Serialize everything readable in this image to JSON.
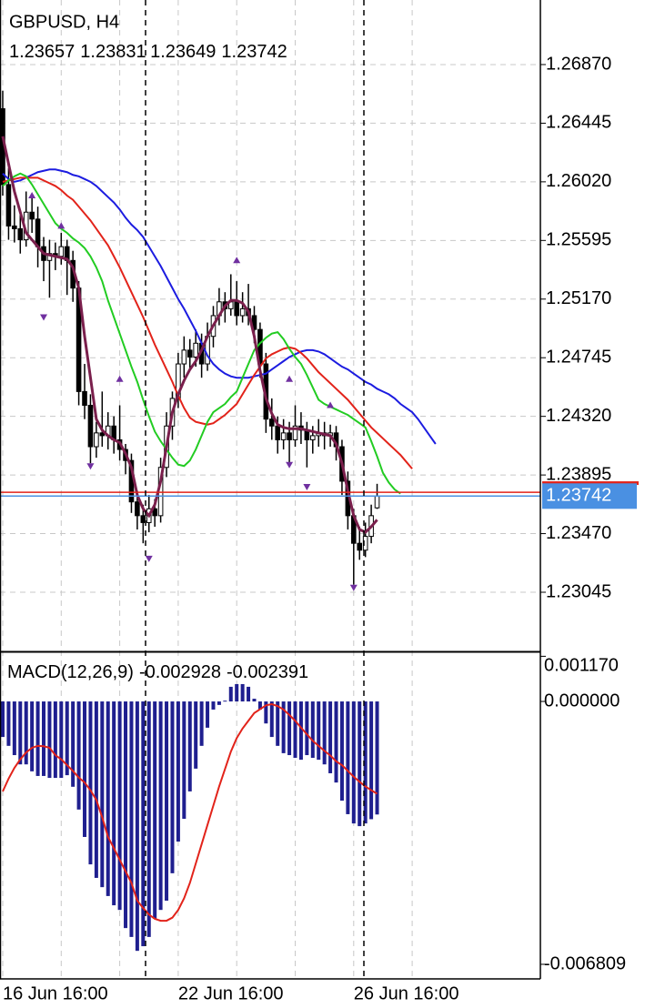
{
  "chart_data": [
    {
      "type": "candlestick",
      "title": "GBPUSD, H4",
      "categories": [
        "16 Jun 16:00",
        null,
        null,
        null,
        null,
        null,
        null,
        null,
        null,
        null,
        null,
        null,
        null,
        null,
        null,
        null,
        null,
        null,
        null,
        null,
        null,
        null,
        null,
        null,
        null,
        null,
        null,
        null,
        null,
        null,
        "22 Jun 16:00",
        null,
        null,
        null,
        null,
        null,
        null,
        null,
        null,
        null,
        null,
        null,
        null,
        null,
        null,
        null,
        null,
        null,
        null,
        null,
        null,
        null,
        null,
        null,
        null,
        null,
        null,
        null,
        null,
        null,
        "26 Jun 16:00",
        null,
        null,
        null,
        null,
        null,
        null,
        null,
        null,
        null,
        null,
        null,
        null,
        null,
        null
      ],
      "open": [
        1.2655,
        1.26,
        1.257,
        1.2568,
        1.256,
        1.258,
        1.2575,
        1.2555,
        1.2545,
        1.255,
        1.2548,
        1.2555,
        1.2545,
        1.2525,
        1.245,
        1.244,
        1.241,
        1.242,
        1.2418,
        1.2425,
        1.2415,
        1.2408,
        1.24,
        1.237,
        1.236,
        1.2355,
        1.2365,
        1.236,
        1.2395,
        1.2425,
        1.2445,
        1.247,
        1.248,
        1.2475,
        1.2485,
        1.247,
        1.249,
        1.2505,
        1.2515,
        1.251,
        1.2515,
        1.2505,
        1.251,
        1.2505,
        1.2495,
        1.247,
        1.243,
        1.2425,
        1.2415,
        1.242,
        1.2415,
        1.2425,
        1.2422,
        1.2415,
        1.2418,
        1.242,
        1.2418,
        1.242,
        1.241,
        1.2385,
        1.236,
        1.234,
        1.2335,
        1.2345,
        1.23657,
        null,
        null,
        null,
        null,
        null,
        null,
        null,
        null,
        null,
        null
      ],
      "high": [
        1.2668,
        1.2612,
        1.2585,
        1.258,
        1.2595,
        1.2592,
        1.2584,
        1.2562,
        1.256,
        1.2558,
        1.2565,
        1.256,
        1.2552,
        1.253,
        1.247,
        1.2448,
        1.2428,
        1.245,
        1.2435,
        1.2432,
        1.244,
        1.2412,
        1.2405,
        1.2378,
        1.2368,
        1.2375,
        1.2372,
        1.2402,
        1.2435,
        1.245,
        1.2478,
        1.249,
        1.2488,
        1.2495,
        1.2492,
        1.25,
        1.2512,
        1.2525,
        1.2522,
        1.2535,
        1.253,
        1.2522,
        1.2528,
        1.2512,
        1.25,
        1.2478,
        1.2445,
        1.2432,
        1.243,
        1.2428,
        1.244,
        1.2435,
        1.2428,
        1.2425,
        1.243,
        1.2428,
        1.2426,
        1.2425,
        1.2415,
        1.2392,
        1.2365,
        1.2352,
        1.2355,
        1.2368,
        1.23831,
        null,
        null,
        null,
        null,
        null,
        null,
        null,
        null,
        null,
        null
      ],
      "low": [
        1.2592,
        1.256,
        1.2558,
        1.255,
        1.2555,
        1.2565,
        1.254,
        1.253,
        1.2518,
        1.2538,
        1.2542,
        1.252,
        1.2515,
        1.244,
        1.243,
        1.2398,
        1.2402,
        1.241,
        1.2408,
        1.2405,
        1.24,
        1.239,
        1.2362,
        1.235,
        1.234,
        1.2348,
        1.2352,
        1.2355,
        1.2388,
        1.2415,
        1.2438,
        1.246,
        1.2465,
        1.2468,
        1.246,
        1.2465,
        1.2482,
        1.2498,
        1.25,
        1.2505,
        1.2498,
        1.25,
        1.2498,
        1.2485,
        1.246,
        1.242,
        1.2415,
        1.2405,
        1.2408,
        1.2398,
        1.241,
        1.2412,
        1.2395,
        1.2405,
        1.241,
        1.2408,
        1.241,
        1.24,
        1.2375,
        1.235,
        1.231,
        1.2328,
        1.233,
        1.234,
        1.23649,
        null,
        null,
        null,
        null,
        null,
        null,
        null,
        null,
        null,
        null
      ],
      "close": [
        1.26,
        1.257,
        1.2568,
        1.256,
        1.258,
        1.2575,
        1.2555,
        1.2545,
        1.255,
        1.2548,
        1.2555,
        1.2545,
        1.2525,
        1.245,
        1.244,
        1.241,
        1.242,
        1.2418,
        1.2425,
        1.2415,
        1.2408,
        1.24,
        1.237,
        1.236,
        1.2355,
        1.2365,
        1.236,
        1.2395,
        1.2425,
        1.2445,
        1.247,
        1.248,
        1.2475,
        1.2485,
        1.247,
        1.249,
        1.2505,
        1.2515,
        1.251,
        1.2515,
        1.2505,
        1.251,
        1.2505,
        1.2495,
        1.247,
        1.243,
        1.2425,
        1.2415,
        1.242,
        1.2415,
        1.2425,
        1.2422,
        1.2415,
        1.2418,
        1.242,
        1.2418,
        1.242,
        1.241,
        1.2385,
        1.236,
        1.234,
        1.2335,
        1.2345,
        1.236,
        1.23742,
        null,
        null,
        null,
        null,
        null,
        null,
        null,
        null,
        null,
        null
      ],
      "lines": [
        {
          "color": "#1c1ce0",
          "values": [
            1.2608,
            1.2604,
            1.2602,
            1.2603,
            1.2605,
            1.2607,
            1.2609,
            1.261,
            1.2611,
            1.2611,
            1.261,
            1.2609,
            1.2607,
            1.2606,
            1.2604,
            1.2602,
            1.2599,
            1.2595,
            1.2591,
            1.2587,
            1.2582,
            1.2576,
            1.2571,
            1.2567,
            1.2562,
            1.2555,
            1.2548,
            1.2541,
            1.2533,
            1.2525,
            1.2517,
            1.251,
            1.2502,
            1.2494,
            1.2485,
            1.2476,
            1.247,
            1.2466,
            1.2463,
            1.2461,
            1.246,
            1.246,
            1.246,
            1.2461,
            1.2462,
            1.2463,
            1.2466,
            1.2469,
            1.2472,
            1.2475,
            1.2477,
            1.2479,
            1.248,
            1.248,
            1.2479,
            1.2477,
            1.2474,
            1.2471,
            1.2468,
            1.2466,
            1.2463,
            1.246,
            1.2457,
            1.2455,
            1.2452,
            1.245,
            1.2448,
            1.2445,
            1.2441,
            1.2438,
            1.2435,
            1.243,
            1.2424,
            1.2418,
            1.2412
          ]
        },
        {
          "color": "#e2231a",
          "values": [
            1.2602,
            1.2603,
            1.2604,
            1.2605,
            1.2605,
            1.2605,
            1.2605,
            1.2603,
            1.2601,
            1.2599,
            1.2596,
            1.2592,
            1.2589,
            1.2584,
            1.2579,
            1.2574,
            1.2568,
            1.2562,
            1.2556,
            1.2548,
            1.254,
            1.2531,
            1.2522,
            1.2513,
            1.2504,
            1.2494,
            1.2484,
            1.2475,
            1.2466,
            1.2457,
            1.2447,
            1.2438,
            1.2431,
            1.2428,
            1.2427,
            1.2426,
            1.2427,
            1.243,
            1.2433,
            1.2437,
            1.2441,
            1.2448,
            1.2455,
            1.2462,
            1.2468,
            1.2474,
            1.2477,
            1.2479,
            1.2481,
            1.2482,
            1.2481,
            1.2478,
            1.2474,
            1.2469,
            1.2464,
            1.246,
            1.2456,
            1.2452,
            1.2448,
            1.2444,
            1.2439,
            1.2434,
            1.2429,
            1.2424,
            1.242,
            1.2416,
            1.2412,
            1.2408,
            1.2404,
            1.2399,
            1.2394,
            null,
            null,
            null,
            null
          ]
        },
        {
          "color": "#22cc22",
          "values": [
            1.2599,
            1.2603,
            1.2606,
            1.2608,
            1.2606,
            1.26,
            1.2593,
            1.2586,
            1.2579,
            1.2572,
            1.2568,
            1.2565,
            1.2561,
            1.2558,
            1.2554,
            1.2548,
            1.254,
            1.253,
            1.2516,
            1.2504,
            1.2492,
            1.248,
            1.2468,
            1.2457,
            1.2444,
            1.2432,
            1.2421,
            1.2414,
            1.2408,
            1.2402,
            1.2397,
            1.2396,
            1.24,
            1.2408,
            1.2418,
            1.2428,
            1.2435,
            1.2438,
            1.2441,
            1.2446,
            1.245,
            1.246,
            1.247,
            1.248,
            1.2485,
            1.2489,
            1.2492,
            1.2493,
            1.2488,
            1.2481,
            1.2475,
            1.247,
            1.2462,
            1.2453,
            1.2444,
            1.2441,
            1.2439,
            1.2437,
            1.2435,
            1.2433,
            1.243,
            1.2427,
            1.2424,
            1.2414,
            1.2403,
            1.2391,
            1.2384,
            1.2379,
            1.2376,
            null,
            null,
            null,
            null,
            null,
            null
          ]
        },
        {
          "color": "#7a1f4c",
          "width": 3,
          "values": [
            1.2635,
            1.2615,
            1.2595,
            1.258,
            1.2565,
            1.256,
            1.2555,
            1.255,
            1.2549,
            1.2548,
            1.2547,
            1.2546,
            1.254,
            1.2525,
            1.249,
            1.246,
            1.243,
            1.2422,
            1.2418,
            1.2415,
            1.2413,
            1.2405,
            1.2395,
            1.2375,
            1.2365,
            1.236,
            1.2368,
            1.2385,
            1.241,
            1.2435,
            1.2448,
            1.2458,
            1.2466,
            1.2472,
            1.248,
            1.249,
            1.2498,
            1.2505,
            1.2512,
            1.2516,
            1.2516,
            1.2514,
            1.2508,
            1.249,
            1.2465,
            1.2445,
            1.2434,
            1.2426,
            1.2424,
            1.2423,
            1.2423,
            1.2423,
            1.2422,
            1.2421,
            1.242,
            1.2419,
            1.2418,
            1.2412,
            1.2398,
            1.2378,
            1.236,
            1.235,
            1.2348,
            1.2352,
            1.2357,
            null,
            null,
            null,
            null,
            null,
            null,
            null,
            null,
            null,
            null
          ]
        }
      ],
      "fractals_up": {
        "color": "#7030a0",
        "x": [
          5,
          10,
          20,
          40,
          49,
          56
        ],
        "values": [
          1.2592,
          1.257,
          1.2459,
          1.2545,
          1.2459,
          1.244
        ]
      },
      "fractals_down": {
        "color": "#7030a0",
        "x": [
          7,
          15,
          25,
          49,
          52,
          60
        ],
        "values": [
          1.2504,
          1.2396,
          1.2329,
          1.2397,
          1.2381,
          1.2308
        ]
      },
      "ask": 1.2377,
      "ask_color": "#e2231a",
      "bid_color": "#4a90e2",
      "ylim": [
        1.22623,
        1.27338
      ],
      "yticks": [
        {
          "value": 1.2687,
          "label": "1.26870"
        },
        {
          "value": 1.26445,
          "label": "1.26445"
        },
        {
          "value": 1.2602,
          "label": "1.26020"
        },
        {
          "value": 1.25595,
          "label": "1.25595"
        },
        {
          "value": 1.2517,
          "label": "1.25170"
        },
        {
          "value": 1.24745,
          "label": "1.24745"
        },
        {
          "value": 1.2432,
          "label": "1.24320"
        },
        {
          "value": 1.23895,
          "label": "1.23895"
        },
        {
          "value": 1.2347,
          "label": "1.23470"
        },
        {
          "value": 1.23045,
          "label": "1.23045"
        }
      ],
      "grid": true
    },
    {
      "type": "macd",
      "label": "MACD(12,26,9)",
      "histogram": {
        "color": "#1f1f8f",
        "values": [
          -0.00092,
          -0.00115,
          -0.00139,
          -0.00163,
          -0.00163,
          -0.00181,
          -0.00193,
          -0.00193,
          -0.00198,
          -0.00198,
          -0.00198,
          -0.00191,
          -0.00221,
          -0.0028,
          -0.00351,
          -0.00422,
          -0.00457,
          -0.00481,
          -0.00504,
          -0.00528,
          -0.0054,
          -0.00587,
          -0.0061,
          -0.00646,
          -0.00634,
          -0.0061,
          -0.00563,
          -0.0054,
          -0.00516,
          -0.00445,
          -0.00363,
          -0.00304,
          -0.00233,
          -0.00174,
          -0.00115,
          -0.00068,
          -0.00021,
          -9e-05,
          2e-05,
          0.00038,
          0.00045,
          0.00045,
          0.00038,
          7e-05,
          -0.00021,
          -0.00057,
          -0.00092,
          -0.00115,
          -0.00134,
          -0.00139,
          -0.00146,
          -0.00151,
          -0.00139,
          -0.00146,
          -0.00151,
          -0.00163,
          -0.00186,
          -0.0021,
          -0.00257,
          -0.00292,
          -0.00316,
          -0.00323,
          -0.00316,
          -0.00305,
          -0.002928
        ]
      },
      "signal": {
        "color": "#e2231a",
        "values": [
          -0.00233,
          -0.002,
          -0.00172,
          -0.0015,
          -0.00132,
          -0.0012,
          -0.00115,
          -0.00116,
          -0.0012,
          -0.00139,
          -0.0015,
          -0.00165,
          -0.0018,
          -0.00197,
          -0.0021,
          -0.0023,
          -0.00255,
          -0.003,
          -0.00351,
          -0.0038,
          -0.0041,
          -0.0044,
          -0.0047,
          -0.00516,
          -0.00535,
          -0.00552,
          -0.00563,
          -0.00568,
          -0.00568,
          -0.0056,
          -0.0054,
          -0.0051,
          -0.0047,
          -0.0042,
          -0.0037,
          -0.0032,
          -0.0027,
          -0.0022,
          -0.00175,
          -0.0013,
          -0.00095,
          -0.0007,
          -0.0005,
          -0.0003,
          -0.0002,
          -0.0001,
          -7e-05,
          -0.00012,
          -0.00021,
          -0.00035,
          -0.0005,
          -0.00068,
          -0.00085,
          -0.00102,
          -0.00115,
          -0.00128,
          -0.0014,
          -0.00155,
          -0.00165,
          -0.0018,
          -0.00195,
          -0.00208,
          -0.0022,
          -0.0023,
          -0.002391
        ]
      },
      "ylim": [
        -0.007163,
        0.00125
      ],
      "yticks": [
        {
          "value": 0.00117,
          "label": "0.001170"
        },
        {
          "value": 0,
          "label": "0.000000"
        },
        -0.006809
      ]
    }
  ]
}
